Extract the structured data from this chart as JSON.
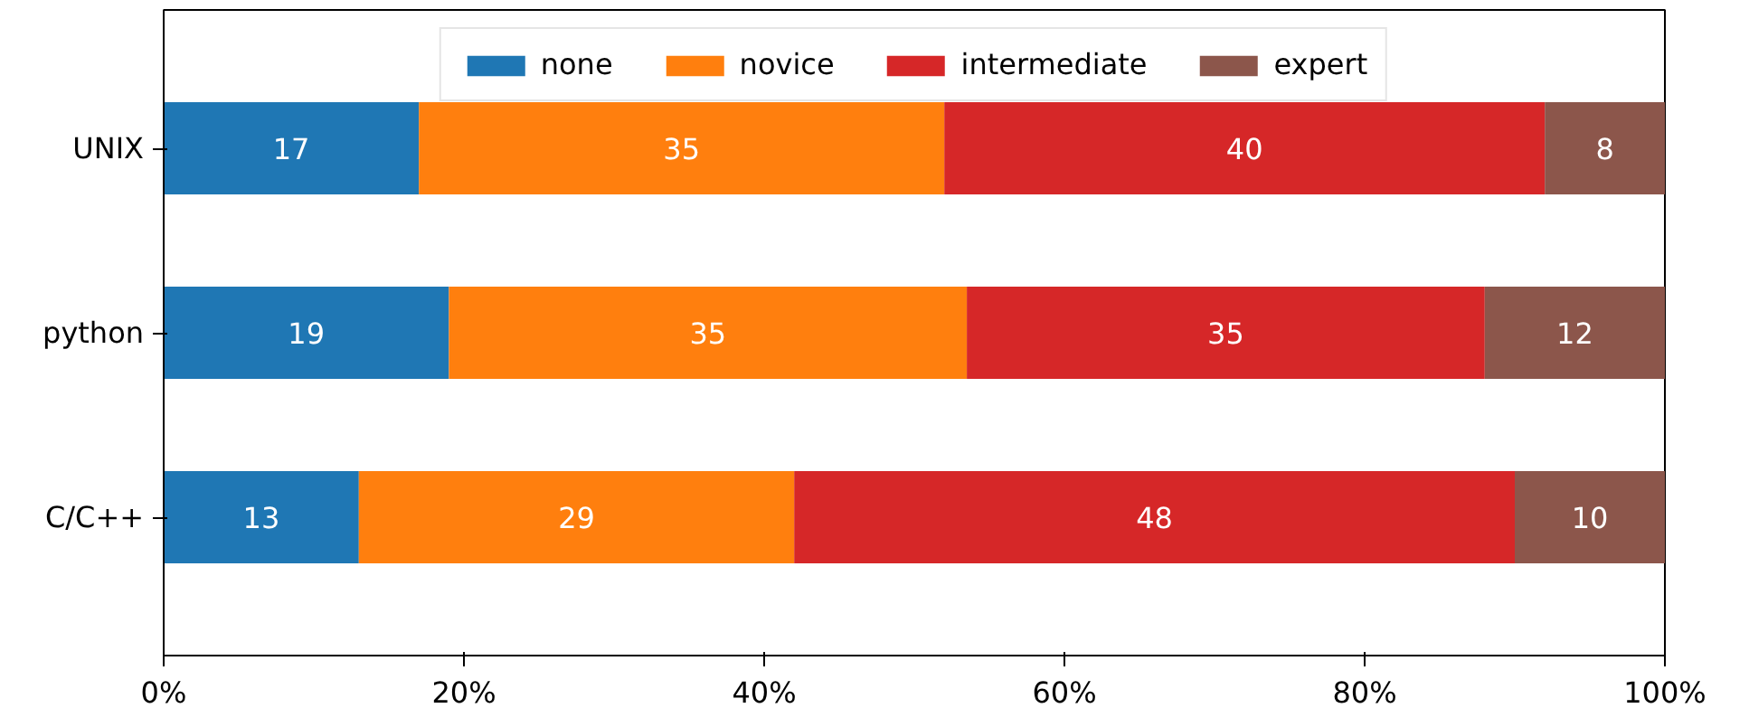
{
  "chart_data": {
    "type": "bar",
    "orientation": "horizontal",
    "stacked": true,
    "categories": [
      "UNIX",
      "python",
      "C/C++"
    ],
    "series": [
      {
        "name": "none",
        "color": "#1f77b4",
        "values": [
          17,
          19,
          13
        ],
        "value_labels": [
          "17",
          "19",
          "13"
        ]
      },
      {
        "name": "novice",
        "color": "#ff7f0e",
        "values": [
          35,
          34.5,
          29
        ],
        "value_labels": [
          "35",
          "35",
          "29"
        ]
      },
      {
        "name": "intermediate",
        "color": "#d62728",
        "values": [
          40,
          34.5,
          48
        ],
        "value_labels": [
          "40",
          "35",
          "48"
        ]
      },
      {
        "name": "expert",
        "color": "#8c564b",
        "values": [
          8,
          12,
          10
        ],
        "value_labels": [
          "8",
          "12",
          "10"
        ]
      }
    ],
    "xlim": [
      0,
      100
    ],
    "xticks": [
      {
        "value": 0,
        "label": "0%"
      },
      {
        "value": 20,
        "label": "20%"
      },
      {
        "value": 40,
        "label": "40%"
      },
      {
        "value": 60,
        "label": "60%"
      },
      {
        "value": 80,
        "label": "80%"
      },
      {
        "value": 100,
        "label": "100%"
      }
    ],
    "legend": "top",
    "grid": false
  }
}
